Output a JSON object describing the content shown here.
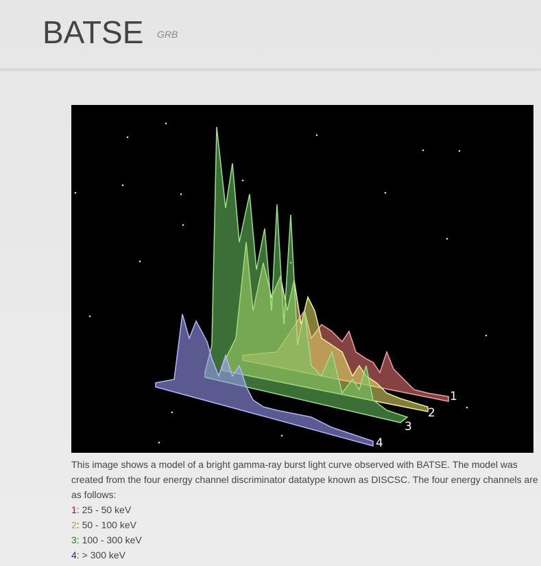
{
  "header": {
    "title": "BATSE",
    "subtitle": "GRB"
  },
  "figure": {
    "labels": [
      "1",
      "2",
      "3",
      "4"
    ]
  },
  "caption": {
    "text": "This image shows a model of a bright gamma-ray burst light curve observed with BATSE. The model was created from the four energy channel discriminator datatype known as DISCSC. The four energy channels are as follows:",
    "channels": [
      {
        "number": "1",
        "color": "#e00000",
        "text": ": 25 - 50 keV"
      },
      {
        "number": "2",
        "color": "#e09a00",
        "text": ": 50 - 100 keV"
      },
      {
        "number": "3",
        "color": "#1a8a1a",
        "text": ": 100 - 300 keV"
      },
      {
        "number": "4",
        "color": "#1a1ae0",
        "text": ": > 300 keV"
      }
    ]
  }
}
